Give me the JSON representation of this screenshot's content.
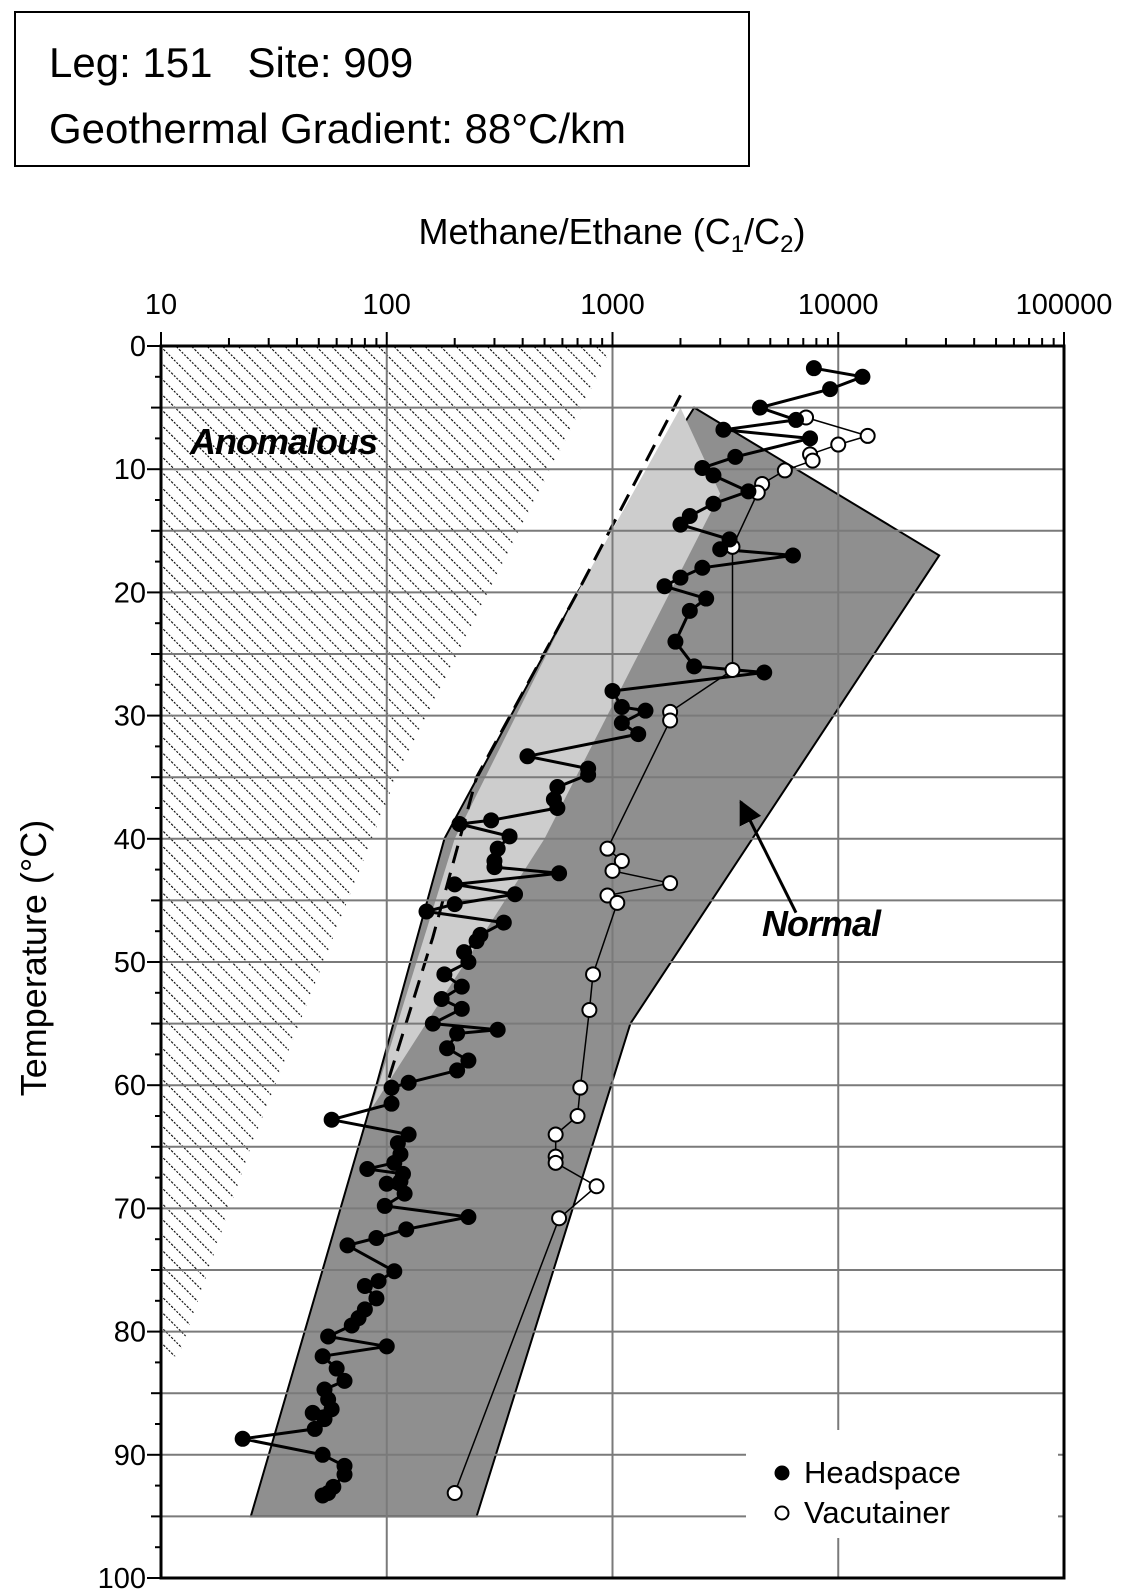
{
  "header": {
    "line1": "Leg: 151   Site: 909",
    "line2": "Geothermal Gradient: 88°C/km"
  },
  "chart_data": {
    "type": "scatter",
    "title": "",
    "xlabel": "Methane/Ethane (C1/C2)",
    "xlabel_main": "Methane/Ethane (C",
    "xlabel_sub1": "1",
    "xlabel_mid": "/C",
    "xlabel_sub2": "2",
    "xlabel_end": ")",
    "ylabel": "Temperature (°C)",
    "x_scale": "log",
    "xlim": [
      10,
      100000
    ],
    "ylim": [
      0,
      100
    ],
    "y_inverted": true,
    "x_tick_labels": [
      "10",
      "100",
      "1000",
      "10000",
      "100000"
    ],
    "x_tick_values": [
      10,
      100,
      1000,
      10000,
      100000
    ],
    "y_tick_labels": [
      "0",
      "10",
      "20",
      "30",
      "40",
      "50",
      "60",
      "70",
      "80",
      "90",
      "100"
    ],
    "y_tick_values": [
      0,
      10,
      20,
      30,
      40,
      50,
      60,
      70,
      80,
      90,
      100
    ],
    "grid": true,
    "legend_position": "bottom-right",
    "zones": {
      "anomalous_label": "Anomalous",
      "normal_label": "Normal",
      "anomalous_boundary": [
        [
          1000,
          0
        ],
        [
          110,
          35
        ],
        [
          25,
          65
        ],
        [
          12,
          82
        ]
      ],
      "normal_band": [
        [
          2300,
          5
        ],
        [
          28000,
          17
        ],
        [
          1200,
          55
        ],
        [
          250,
          95
        ],
        [
          25,
          95
        ],
        [
          90,
          60
        ],
        [
          180,
          40
        ],
        [
          700,
          20
        ],
        [
          2300,
          5
        ]
      ],
      "transition_zone": [
        [
          2000,
          5
        ],
        [
          3000,
          12
        ],
        [
          500,
          40
        ],
        [
          85,
          62
        ],
        [
          200,
          40
        ],
        [
          700,
          20
        ],
        [
          2000,
          5
        ]
      ],
      "dashed_boundary": [
        [
          2000,
          4
        ],
        [
          700,
          20
        ],
        [
          250,
          35
        ],
        [
          160,
          48
        ],
        [
          100,
          60
        ]
      ],
      "normal_arrow_from": [
        6500,
        46
      ],
      "normal_arrow_to": [
        3700,
        37
      ]
    },
    "series": [
      {
        "name": "Headspace",
        "marker": "filled-circle",
        "color": "#000000",
        "points": [
          [
            7800,
            1.8
          ],
          [
            12800,
            2.5
          ],
          [
            9200,
            3.5
          ],
          [
            4500,
            5.0
          ],
          [
            6500,
            6.0
          ],
          [
            3100,
            6.8
          ],
          [
            7500,
            7.5
          ],
          [
            3500,
            9.0
          ],
          [
            2500,
            9.9
          ],
          [
            2800,
            10.5
          ],
          [
            4000,
            11.8
          ],
          [
            2800,
            12.8
          ],
          [
            2200,
            13.8
          ],
          [
            2000,
            14.5
          ],
          [
            3300,
            15.7
          ],
          [
            3000,
            16.5
          ],
          [
            6300,
            17.0
          ],
          [
            2500,
            18.0
          ],
          [
            2000,
            18.8
          ],
          [
            1700,
            19.5
          ],
          [
            2600,
            20.5
          ],
          [
            2200,
            21.5
          ],
          [
            1900,
            24.0
          ],
          [
            2300,
            26.0
          ],
          [
            4700,
            26.5
          ],
          [
            1000,
            28.0
          ],
          [
            1100,
            29.3
          ],
          [
            1400,
            29.6
          ],
          [
            1100,
            30.6
          ],
          [
            1300,
            31.5
          ],
          [
            420,
            33.3
          ],
          [
            780,
            34.3
          ],
          [
            780,
            34.8
          ],
          [
            570,
            35.8
          ],
          [
            550,
            36.8
          ],
          [
            570,
            37.5
          ],
          [
            290,
            38.5
          ],
          [
            210,
            38.8
          ],
          [
            350,
            39.8
          ],
          [
            310,
            40.8
          ],
          [
            300,
            41.8
          ],
          [
            300,
            42.3
          ],
          [
            580,
            42.8
          ],
          [
            200,
            43.7
          ],
          [
            370,
            44.5
          ],
          [
            200,
            45.3
          ],
          [
            150,
            45.9
          ],
          [
            330,
            46.8
          ],
          [
            260,
            47.8
          ],
          [
            250,
            48.3
          ],
          [
            220,
            49.2
          ],
          [
            230,
            50.0
          ],
          [
            180,
            51.0
          ],
          [
            215,
            52.0
          ],
          [
            175,
            53.0
          ],
          [
            215,
            53.8
          ],
          [
            160,
            55.0
          ],
          [
            310,
            55.5
          ],
          [
            205,
            55.8
          ],
          [
            185,
            57.0
          ],
          [
            230,
            58.0
          ],
          [
            205,
            58.8
          ],
          [
            125,
            59.8
          ],
          [
            105,
            60.2
          ],
          [
            105,
            61.5
          ],
          [
            57,
            62.8
          ],
          [
            125,
            64.0
          ],
          [
            112,
            64.7
          ],
          [
            115,
            65.6
          ],
          [
            108,
            66.3
          ],
          [
            82,
            66.8
          ],
          [
            118,
            67.2
          ],
          [
            115,
            67.8
          ],
          [
            100,
            68.0
          ],
          [
            120,
            68.8
          ],
          [
            98,
            69.8
          ],
          [
            230,
            70.7
          ],
          [
            122,
            71.7
          ],
          [
            90,
            72.4
          ],
          [
            67,
            73.0
          ],
          [
            108,
            75.1
          ],
          [
            92,
            75.9
          ],
          [
            80,
            76.3
          ],
          [
            90,
            77.3
          ],
          [
            80,
            78.2
          ],
          [
            75,
            78.9
          ],
          [
            70,
            79.5
          ],
          [
            55,
            80.4
          ],
          [
            100,
            81.2
          ],
          [
            52,
            82.0
          ],
          [
            60,
            83.0
          ],
          [
            65,
            84.0
          ],
          [
            53,
            84.7
          ],
          [
            55,
            85.5
          ],
          [
            57,
            86.3
          ],
          [
            47,
            86.6
          ],
          [
            53,
            87.1
          ],
          [
            48,
            87.9
          ],
          [
            23,
            88.7
          ],
          [
            52,
            90.0
          ],
          [
            65,
            90.9
          ],
          [
            65,
            91.6
          ],
          [
            58,
            92.6
          ],
          [
            52,
            93.3
          ],
          [
            55,
            93.1
          ]
        ]
      },
      {
        "name": "Vacutainer",
        "marker": "open-circle",
        "color": "#ffffff",
        "points": [
          [
            7200,
            5.8
          ],
          [
            13500,
            7.3
          ],
          [
            10000,
            8.0
          ],
          [
            7500,
            8.8
          ],
          [
            7700,
            9.3
          ],
          [
            5800,
            10.1
          ],
          [
            4600,
            11.2
          ],
          [
            4400,
            11.9
          ],
          [
            3400,
            16.3
          ],
          [
            3400,
            26.3
          ],
          [
            1800,
            29.7
          ],
          [
            1800,
            30.4
          ],
          [
            950,
            40.8
          ],
          [
            1100,
            41.8
          ],
          [
            1000,
            42.6
          ],
          [
            1800,
            43.6
          ],
          [
            950,
            44.6
          ],
          [
            1050,
            45.2
          ],
          [
            820,
            51.0
          ],
          [
            790,
            53.9
          ],
          [
            720,
            60.2
          ],
          [
            700,
            62.5
          ],
          [
            560,
            64.0
          ],
          [
            560,
            65.8
          ],
          [
            560,
            66.3
          ],
          [
            850,
            68.2
          ],
          [
            580,
            70.8
          ],
          [
            200,
            93.1
          ]
        ]
      }
    ]
  }
}
